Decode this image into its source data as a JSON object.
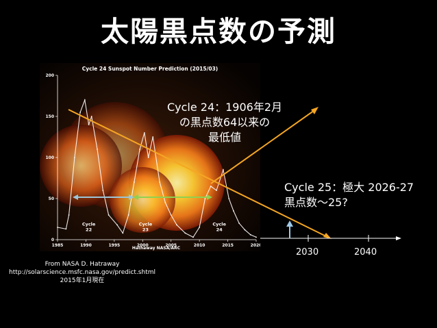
{
  "slide": {
    "title": "太陽黒点数の予測"
  },
  "annotations": {
    "cycle24_line1": "Cycle 24：1906年2月",
    "cycle24_line2": "の黒点数64以来の",
    "cycle24_line3": "最低値",
    "cycle25_line1": "Cycle 25：極大 2026-27",
    "cycle25_line2": "黒点数～25?"
  },
  "extended_axis": {
    "ticks": [
      "2030",
      "2040"
    ]
  },
  "credit": {
    "line1": "From NASA D. Hatraway",
    "line2": "http://solarscience.msfc.nasa.gov/predict.shtml",
    "line3": "2015年1月現在"
  },
  "colors": {
    "arrow_orange": "#f5a623",
    "arrow_green": "#8fd14f",
    "arrow_blue": "#9ec9e8",
    "sun_core": "#ffcc33",
    "sun_edge": "#c2410c"
  },
  "chart_data": {
    "type": "line",
    "title": "Cycle 24 Sunspot Number Prediction (2015/03)",
    "xlabel": "",
    "ylabel": "",
    "xlim": [
      1985,
      2020
    ],
    "ylim": [
      0,
      200
    ],
    "x_ticks": [
      "1985",
      "1990",
      "1995",
      "2000",
      "2005",
      "2010",
      "2015",
      "2020"
    ],
    "y_ticks": [
      "0",
      "50",
      "100",
      "150",
      "200"
    ],
    "grid": false,
    "footer": "Hathaway NASA/ARC",
    "cycle_labels": [
      {
        "text": "Cycle\n22",
        "x": 1990.5,
        "y": 17
      },
      {
        "text": "Cycle\n23",
        "x": 2000.5,
        "y": 17
      },
      {
        "text": "Cycle\n24",
        "x": 2013.5,
        "y": 17
      }
    ],
    "series": [
      {
        "values": [
          [
            1985,
            15
          ],
          [
            1986.5,
            13
          ],
          [
            1987,
            30
          ],
          [
            1988,
            100
          ],
          [
            1989,
            155
          ],
          [
            1989.8,
            170
          ],
          [
            1990.5,
            140
          ],
          [
            1991,
            150
          ],
          [
            1992,
            110
          ],
          [
            1993,
            60
          ],
          [
            1994,
            30
          ],
          [
            1995.5,
            18
          ],
          [
            1996.5,
            8
          ],
          [
            1997.5,
            30
          ],
          [
            1998.5,
            70
          ],
          [
            1999.5,
            110
          ],
          [
            2000.3,
            130
          ],
          [
            2001,
            100
          ],
          [
            2001.8,
            125
          ],
          [
            2003,
            70
          ],
          [
            2004,
            45
          ],
          [
            2005,
            30
          ],
          [
            2006,
            18
          ],
          [
            2007.5,
            8
          ],
          [
            2008.9,
            3
          ],
          [
            2010,
            15
          ],
          [
            2011,
            50
          ],
          [
            2012,
            65
          ],
          [
            2013,
            60
          ],
          [
            2014.2,
            85
          ],
          [
            2015.2,
            50
          ],
          [
            2016,
            35
          ],
          [
            2017,
            20
          ],
          [
            2018,
            12
          ],
          [
            2019,
            6
          ],
          [
            2020,
            3
          ]
        ]
      }
    ]
  }
}
